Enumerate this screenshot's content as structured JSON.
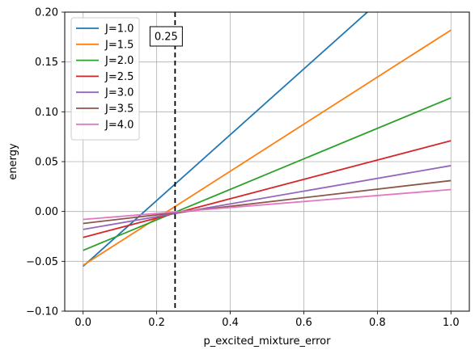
{
  "chart_data": {
    "type": "line",
    "title": "",
    "xlabel": "p_excited_mixture_error",
    "ylabel": "energy",
    "xlim": [
      -0.05,
      1.05
    ],
    "ylim": [
      -0.1,
      0.2
    ],
    "xticks": [
      "0.0",
      "0.2",
      "0.4",
      "0.6",
      "0.8",
      "1.0"
    ],
    "yticks": [
      "−0.10",
      "−0.05",
      "0.00",
      "0.05",
      "0.10",
      "0.15",
      "0.20"
    ],
    "grid": true,
    "legend_position": "upper-left",
    "annotation": {
      "x": 0.25,
      "label": "0.25",
      "style": "dashed vertical line"
    },
    "series": [
      {
        "name": "J=1.0",
        "color": "#1f77b4",
        "x": [
          0.0,
          1.0
        ],
        "y": [
          -0.055,
          0.275
        ]
      },
      {
        "name": "J=1.5",
        "color": "#ff7f0e",
        "x": [
          0.0,
          1.0
        ],
        "y": [
          -0.054,
          0.182
        ]
      },
      {
        "name": "J=2.0",
        "color": "#2ca02c",
        "x": [
          0.0,
          1.0
        ],
        "y": [
          -0.039,
          0.114
        ]
      },
      {
        "name": "J=2.5",
        "color": "#d62728",
        "x": [
          0.0,
          1.0
        ],
        "y": [
          -0.026,
          0.071
        ]
      },
      {
        "name": "J=3.0",
        "color": "#9467bd",
        "x": [
          0.0,
          1.0
        ],
        "y": [
          -0.018,
          0.046
        ]
      },
      {
        "name": "J=3.5",
        "color": "#8c564b",
        "x": [
          0.0,
          1.0
        ],
        "y": [
          -0.012,
          0.031
        ]
      },
      {
        "name": "J=4.0",
        "color": "#e377c2",
        "x": [
          0.0,
          1.0
        ],
        "y": [
          -0.008,
          0.022
        ]
      }
    ]
  }
}
